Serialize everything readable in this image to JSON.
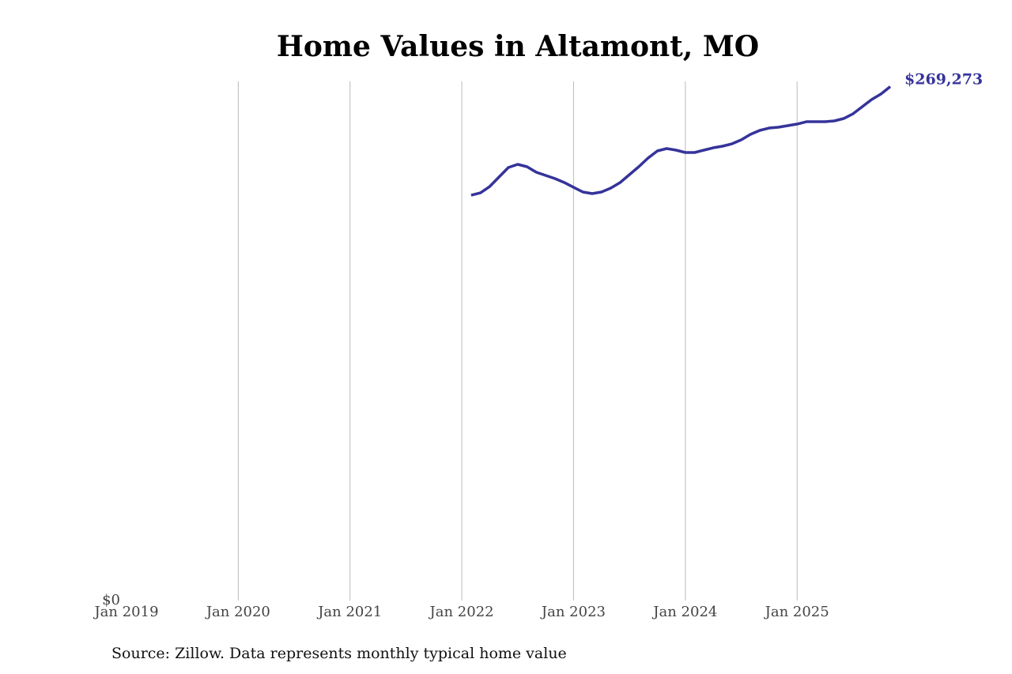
{
  "chart_data": {
    "type": "line",
    "title": "Home Values in Altamont, MO",
    "source": "Source: Zillow. Data represents monthly typical home value",
    "x": [
      "2022-02",
      "2022-03",
      "2022-04",
      "2022-05",
      "2022-06",
      "2022-07",
      "2022-08",
      "2022-09",
      "2022-10",
      "2022-11",
      "2022-12",
      "2023-01",
      "2023-02",
      "2023-03",
      "2023-04",
      "2023-05",
      "2023-06",
      "2023-07",
      "2023-08",
      "2023-09",
      "2023-10",
      "2023-11",
      "2023-12",
      "2024-01",
      "2024-02",
      "2024-03",
      "2024-04",
      "2024-05",
      "2024-06",
      "2024-07",
      "2024-08",
      "2024-09",
      "2024-10",
      "2024-11",
      "2024-12",
      "2025-01",
      "2025-02",
      "2025-03",
      "2025-04",
      "2025-05",
      "2025-06",
      "2025-07",
      "2025-08",
      "2025-09",
      "2025-10",
      "2025-11"
    ],
    "series": [
      {
        "color": "#35339a",
        "values": [
          212380,
          213620,
          216930,
          221900,
          226870,
          228530,
          227290,
          224390,
          222730,
          221080,
          219010,
          216520,
          214040,
          213210,
          214040,
          216110,
          219010,
          223150,
          227290,
          231840,
          235570,
          236810,
          235980,
          234740,
          234740,
          235980,
          237220,
          238050,
          239290,
          241360,
          244260,
          246330,
          247570,
          247990,
          248810,
          249640,
          250880,
          250880,
          250880,
          251300,
          252540,
          255020,
          258750,
          262480,
          265370,
          269273
        ],
        "value_labels": [
          null,
          null,
          null,
          null,
          null,
          null,
          null,
          null,
          null,
          null,
          null,
          null,
          null,
          null,
          null,
          null,
          null,
          null,
          null,
          null,
          null,
          null,
          null,
          null,
          null,
          null,
          null,
          null,
          null,
          null,
          null,
          null,
          null,
          null,
          null,
          null,
          null,
          null,
          null,
          null,
          null,
          null,
          null,
          null,
          null,
          "$269,273"
        ]
      }
    ],
    "xlim": [
      "2019-01",
      "2025-11"
    ],
    "xticks": [
      {
        "value": "2019-01",
        "label": "Jan 2019"
      },
      {
        "value": "2020-01",
        "label": "Jan 2020"
      },
      {
        "value": "2021-01",
        "label": "Jan 2021"
      },
      {
        "value": "2022-01",
        "label": "Jan 2022"
      },
      {
        "value": "2023-01",
        "label": "Jan 2023"
      },
      {
        "value": "2024-01",
        "label": "Jan 2024"
      },
      {
        "value": "2025-01",
        "label": "Jan 2025"
      }
    ],
    "ylim": [
      0,
      272000
    ],
    "yticks": [
      {
        "value": 0,
        "label": "$0"
      }
    ],
    "grid": true
  }
}
